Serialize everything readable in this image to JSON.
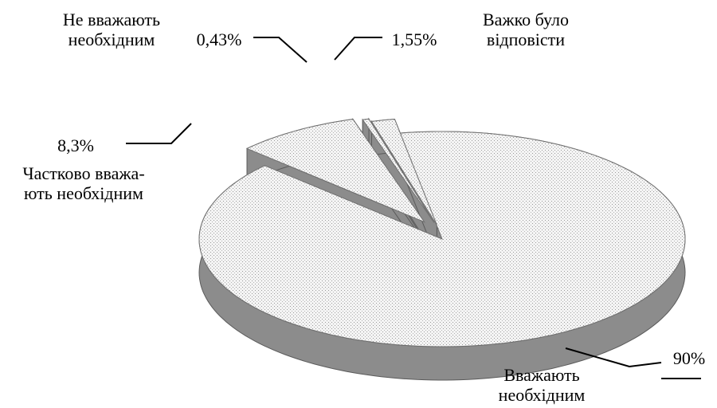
{
  "chart_data": {
    "type": "pie",
    "categories": [
      "Вважають\nнеобхідним",
      "Частково вважа-\nють необхідним",
      "Не вважають\nнеобхідним",
      "Важко було\nвідповісти"
    ],
    "values": [
      90,
      8.3,
      0.43,
      1.55
    ],
    "value_labels": [
      "90%",
      "8,3%",
      "0,43%",
      "1,55%"
    ],
    "color": "#e6e6e6"
  }
}
